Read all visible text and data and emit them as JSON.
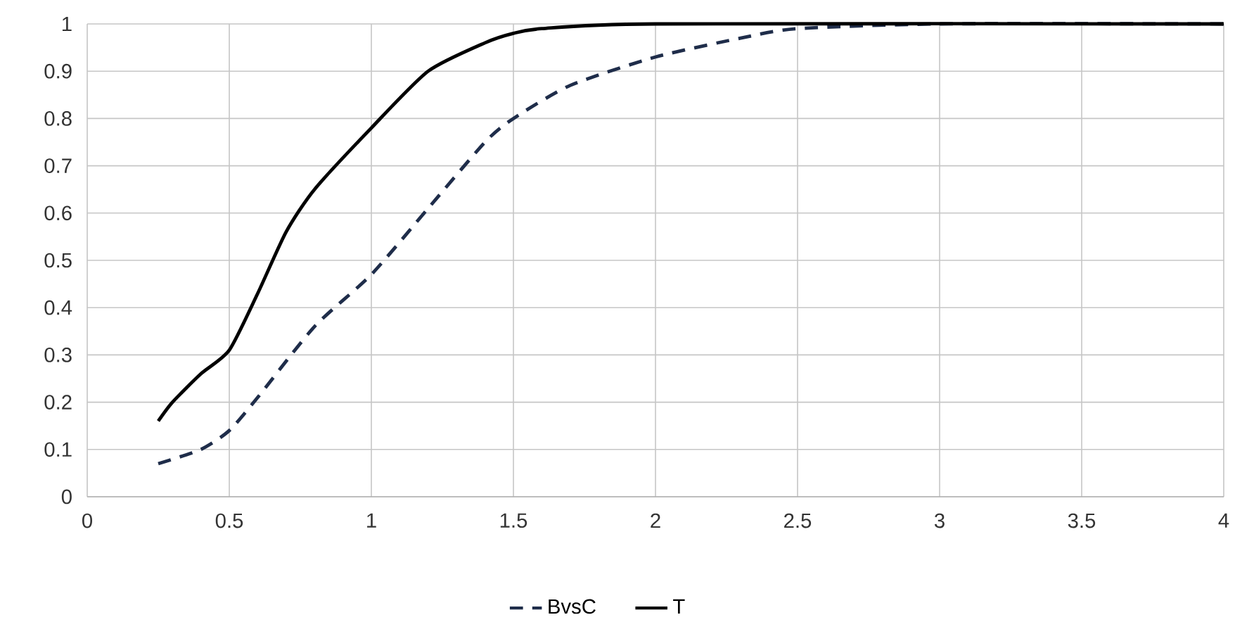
{
  "chart_data": {
    "type": "line",
    "series": [
      {
        "name": "BvsC",
        "color": "#1f2d4a",
        "line_style": "dashed",
        "x": [
          0.25,
          0.4,
          0.5,
          0.6,
          0.8,
          1.0,
          1.2,
          1.4,
          1.5,
          1.7,
          2.0,
          2.3,
          2.5,
          3.0,
          4.0
        ],
        "values": [
          0.07,
          0.1,
          0.14,
          0.21,
          0.36,
          0.47,
          0.61,
          0.75,
          0.8,
          0.87,
          0.93,
          0.97,
          0.99,
          1.0,
          1.0
        ]
      },
      {
        "name": "T",
        "color": "#000000",
        "line_style": "solid",
        "x": [
          0.25,
          0.3,
          0.4,
          0.5,
          0.6,
          0.7,
          0.8,
          1.0,
          1.2,
          1.4,
          1.5,
          1.6,
          2.0,
          4.0
        ],
        "values": [
          0.16,
          0.2,
          0.26,
          0.31,
          0.43,
          0.56,
          0.65,
          0.78,
          0.9,
          0.96,
          0.98,
          0.99,
          1.0,
          1.0
        ]
      }
    ],
    "xlim": [
      0,
      4
    ],
    "xticks": [
      0,
      0.5,
      1,
      1.5,
      2,
      2.5,
      3,
      3.5,
      4
    ],
    "ylim": [
      0,
      1
    ],
    "yticks": [
      0,
      0.1,
      0.2,
      0.3,
      0.4,
      0.5,
      0.6,
      0.7,
      0.8,
      0.9,
      1
    ],
    "grid": true,
    "legend": "bottom",
    "marker": "none"
  }
}
